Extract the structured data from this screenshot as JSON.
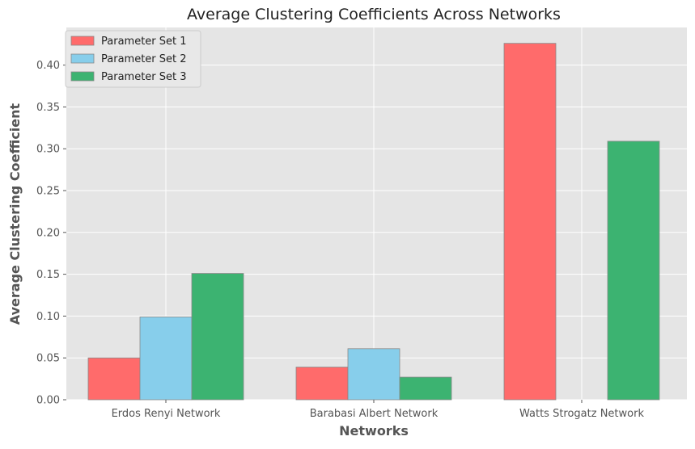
{
  "chart_data": {
    "type": "bar",
    "title": "Average Clustering Coefficients Across Networks",
    "xlabel": "Networks",
    "ylabel": "Average Clustering Coefficient",
    "categories": [
      "Erdos Renyi Network",
      "Barabasi Albert Network",
      "Watts Strogatz Network"
    ],
    "series": [
      {
        "name": "Parameter Set 1",
        "color": "#ff6b6b",
        "values": [
          0.05,
          0.039,
          0.426
        ]
      },
      {
        "name": "Parameter Set 2",
        "color": "#87ceeb",
        "values": [
          0.099,
          0.061,
          0.0
        ]
      },
      {
        "name": "Parameter Set 3",
        "color": "#3cb371",
        "values": [
          0.151,
          0.027,
          0.309
        ]
      }
    ],
    "ylim": [
      0,
      0.445
    ],
    "yticks": [
      "0.00",
      "0.05",
      "0.10",
      "0.15",
      "0.20",
      "0.25",
      "0.30",
      "0.35",
      "0.40"
    ],
    "grid": true,
    "legend_position": "upper-left",
    "background_color": "#e5e5e5"
  }
}
